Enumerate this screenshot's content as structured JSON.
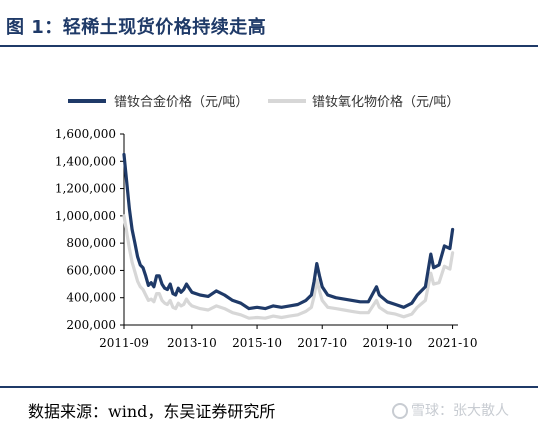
{
  "figure": {
    "title": "图 1：轻稀土现货价格持续走高",
    "source": "数据来源：wind，东吴证券研究所",
    "watermark": "雪球：张大散人"
  },
  "chart_data": {
    "type": "line",
    "title": "",
    "xlabel": "",
    "ylabel": "",
    "ylim": [
      200000,
      1600000
    ],
    "yticks": [
      200000,
      400000,
      600000,
      800000,
      1000000,
      1200000,
      1400000,
      1600000
    ],
    "ytick_labels": [
      "200,000",
      "400,000",
      "600,000",
      "800,000",
      "1,000,000",
      "1,200,000",
      "1,400,000",
      "1,600,000"
    ],
    "xlim": [
      "2011-09",
      "2021-12"
    ],
    "xtick_labels": [
      "2011-09",
      "2013-10",
      "2015-10",
      "2017-10",
      "2019-10",
      "2021-10"
    ],
    "grid": false,
    "legend_position": "top",
    "series": [
      {
        "name": "镨钕合金价格（元/吨）",
        "color": "#1f3a68",
        "points": [
          [
            "2011-09",
            1450000
          ],
          [
            "2011-10",
            1250000
          ],
          [
            "2011-11",
            1050000
          ],
          [
            "2011-12",
            900000
          ],
          [
            "2012-01",
            800000
          ],
          [
            "2012-02",
            700000
          ],
          [
            "2012-03",
            640000
          ],
          [
            "2012-04",
            620000
          ],
          [
            "2012-05",
            560000
          ],
          [
            "2012-06",
            490000
          ],
          [
            "2012-07",
            510000
          ],
          [
            "2012-08",
            480000
          ],
          [
            "2012-09",
            560000
          ],
          [
            "2012-10",
            560000
          ],
          [
            "2012-11",
            500000
          ],
          [
            "2012-12",
            470000
          ],
          [
            "2013-01",
            460000
          ],
          [
            "2013-02",
            500000
          ],
          [
            "2013-03",
            430000
          ],
          [
            "2013-04",
            420000
          ],
          [
            "2013-05",
            470000
          ],
          [
            "2013-06",
            440000
          ],
          [
            "2013-07",
            460000
          ],
          [
            "2013-08",
            500000
          ],
          [
            "2013-09",
            470000
          ],
          [
            "2013-10",
            440000
          ],
          [
            "2014-01",
            420000
          ],
          [
            "2014-04",
            410000
          ],
          [
            "2014-07",
            450000
          ],
          [
            "2014-10",
            420000
          ],
          [
            "2015-01",
            380000
          ],
          [
            "2015-04",
            360000
          ],
          [
            "2015-07",
            320000
          ],
          [
            "2015-10",
            330000
          ],
          [
            "2016-01",
            320000
          ],
          [
            "2016-04",
            340000
          ],
          [
            "2016-07",
            330000
          ],
          [
            "2016-10",
            340000
          ],
          [
            "2017-01",
            350000
          ],
          [
            "2017-04",
            380000
          ],
          [
            "2017-06",
            420000
          ],
          [
            "2017-07",
            520000
          ],
          [
            "2017-08",
            650000
          ],
          [
            "2017-09",
            560000
          ],
          [
            "2017-10",
            480000
          ],
          [
            "2017-12",
            420000
          ],
          [
            "2018-03",
            400000
          ],
          [
            "2018-06",
            390000
          ],
          [
            "2018-09",
            380000
          ],
          [
            "2018-12",
            370000
          ],
          [
            "2019-03",
            370000
          ],
          [
            "2019-06",
            480000
          ],
          [
            "2019-07",
            420000
          ],
          [
            "2019-10",
            370000
          ],
          [
            "2020-01",
            350000
          ],
          [
            "2020-04",
            330000
          ],
          [
            "2020-07",
            360000
          ],
          [
            "2020-09",
            420000
          ],
          [
            "2020-12",
            480000
          ],
          [
            "2021-02",
            720000
          ],
          [
            "2021-03",
            620000
          ],
          [
            "2021-05",
            640000
          ],
          [
            "2021-07",
            780000
          ],
          [
            "2021-09",
            760000
          ],
          [
            "2021-10",
            900000
          ]
        ]
      },
      {
        "name": "镨钕氧化物价格（元/吨）",
        "color": "#d7d7d7",
        "points": [
          [
            "2011-09",
            1000000
          ],
          [
            "2011-10",
            880000
          ],
          [
            "2011-11",
            760000
          ],
          [
            "2011-12",
            660000
          ],
          [
            "2012-01",
            590000
          ],
          [
            "2012-02",
            520000
          ],
          [
            "2012-03",
            480000
          ],
          [
            "2012-04",
            460000
          ],
          [
            "2012-05",
            420000
          ],
          [
            "2012-06",
            380000
          ],
          [
            "2012-07",
            390000
          ],
          [
            "2012-08",
            370000
          ],
          [
            "2012-09",
            430000
          ],
          [
            "2012-10",
            430000
          ],
          [
            "2012-11",
            380000
          ],
          [
            "2012-12",
            360000
          ],
          [
            "2013-01",
            350000
          ],
          [
            "2013-02",
            380000
          ],
          [
            "2013-03",
            330000
          ],
          [
            "2013-04",
            320000
          ],
          [
            "2013-05",
            360000
          ],
          [
            "2013-06",
            340000
          ],
          [
            "2013-07",
            350000
          ],
          [
            "2013-08",
            390000
          ],
          [
            "2013-09",
            360000
          ],
          [
            "2013-10",
            340000
          ],
          [
            "2014-01",
            320000
          ],
          [
            "2014-04",
            310000
          ],
          [
            "2014-07",
            340000
          ],
          [
            "2014-10",
            320000
          ],
          [
            "2015-01",
            290000
          ],
          [
            "2015-04",
            275000
          ],
          [
            "2015-07",
            250000
          ],
          [
            "2015-10",
            255000
          ],
          [
            "2016-01",
            250000
          ],
          [
            "2016-04",
            265000
          ],
          [
            "2016-07",
            255000
          ],
          [
            "2016-10",
            265000
          ],
          [
            "2017-01",
            275000
          ],
          [
            "2017-04",
            300000
          ],
          [
            "2017-06",
            330000
          ],
          [
            "2017-07",
            410000
          ],
          [
            "2017-08",
            530000
          ],
          [
            "2017-09",
            450000
          ],
          [
            "2017-10",
            380000
          ],
          [
            "2017-12",
            330000
          ],
          [
            "2018-03",
            320000
          ],
          [
            "2018-06",
            310000
          ],
          [
            "2018-09",
            300000
          ],
          [
            "2018-12",
            290000
          ],
          [
            "2019-03",
            290000
          ],
          [
            "2019-06",
            380000
          ],
          [
            "2019-07",
            330000
          ],
          [
            "2019-10",
            290000
          ],
          [
            "2020-01",
            280000
          ],
          [
            "2020-04",
            260000
          ],
          [
            "2020-07",
            280000
          ],
          [
            "2020-09",
            330000
          ],
          [
            "2020-12",
            380000
          ],
          [
            "2021-02",
            580000
          ],
          [
            "2021-03",
            500000
          ],
          [
            "2021-05",
            510000
          ],
          [
            "2021-07",
            630000
          ],
          [
            "2021-09",
            610000
          ],
          [
            "2021-10",
            730000
          ]
        ]
      }
    ]
  }
}
